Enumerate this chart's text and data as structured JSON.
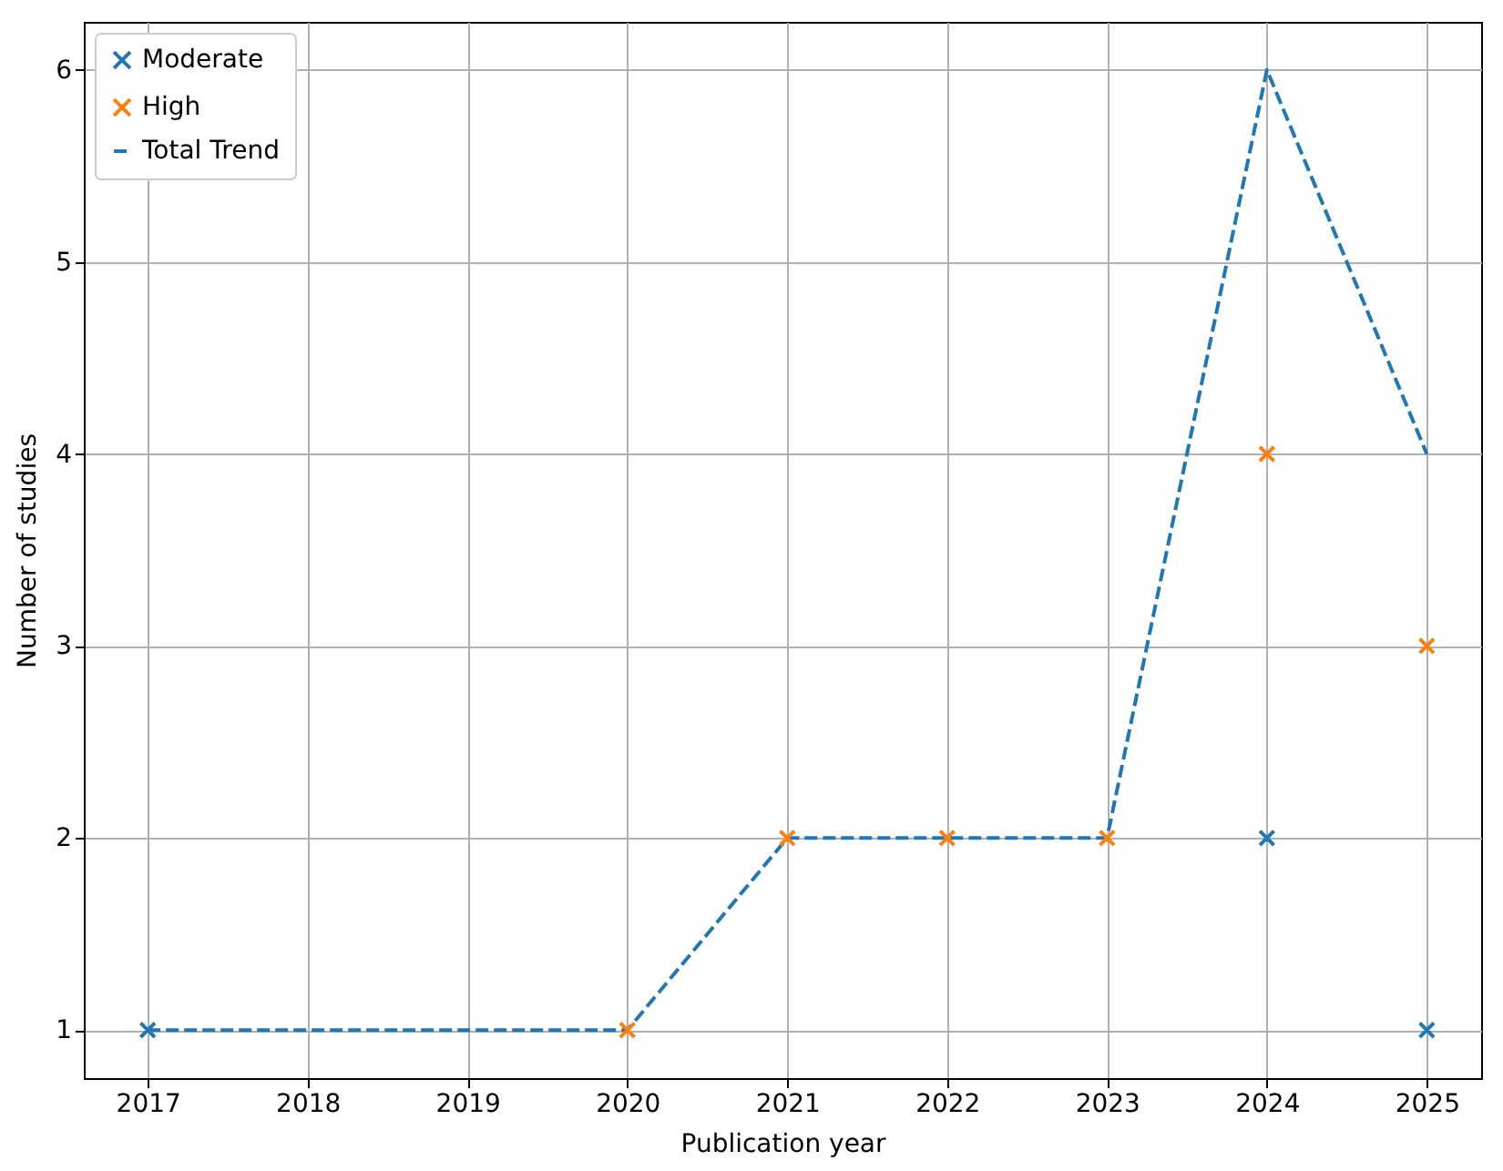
{
  "chart_data": {
    "type": "scatter",
    "xlabel": "Publication year",
    "ylabel": "Number of studies",
    "xlim": [
      2016.6,
      2025.34
    ],
    "xticks": [
      2017,
      2018,
      2019,
      2020,
      2021,
      2022,
      2023,
      2024,
      2025
    ],
    "ylim": [
      0.75,
      6.25
    ],
    "yticks": [
      1,
      2,
      3,
      4,
      5,
      6
    ],
    "grid": true,
    "legend": "top left",
    "series": [
      {
        "name": "Moderate",
        "marker": "cross",
        "color": "#1f77b4",
        "x": [
          2017,
          2024,
          2025
        ],
        "values": [
          1,
          2,
          1
        ]
      },
      {
        "name": "High",
        "marker": "cross",
        "color": "#ff7f0e",
        "x": [
          2020,
          2021,
          2022,
          2023,
          2024,
          2025
        ],
        "values": [
          1,
          2,
          2,
          2,
          4,
          3
        ]
      },
      {
        "name": "Total Trend",
        "type": "line",
        "line_style": "dashed",
        "color": "#1f77b4",
        "x": [
          2017,
          2020,
          2021,
          2022,
          2023,
          2024,
          2025
        ],
        "values": [
          1,
          1,
          2,
          2,
          2,
          6,
          4
        ]
      }
    ]
  }
}
